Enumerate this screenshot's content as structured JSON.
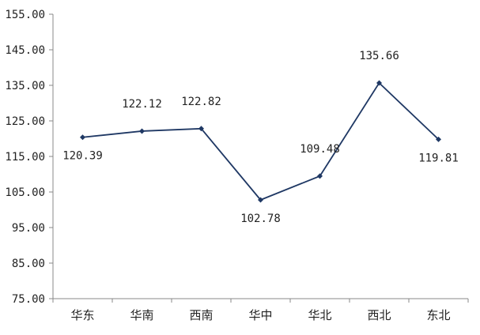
{
  "chart_data": {
    "type": "line",
    "categories": [
      "华东",
      "华南",
      "西南",
      "华中",
      "华北",
      "西北",
      "东北"
    ],
    "series": [
      {
        "values": [
          120.39,
          122.12,
          122.82,
          102.78,
          109.48,
          135.66,
          119.81
        ]
      }
    ],
    "data_labels": [
      "120.39",
      "122.12",
      "122.82",
      "102.78",
      "109.48",
      "135.66",
      "119.81"
    ],
    "y_ticks": [
      "75.00",
      "85.00",
      "95.00",
      "105.00",
      "115.00",
      "125.00",
      "135.00",
      "145.00",
      "155.00"
    ],
    "ylim": [
      75,
      155
    ],
    "grid": false,
    "legend": "none",
    "colors": {
      "line": "#1f3864",
      "marker": "#1f3864",
      "axis": "#888888"
    }
  }
}
